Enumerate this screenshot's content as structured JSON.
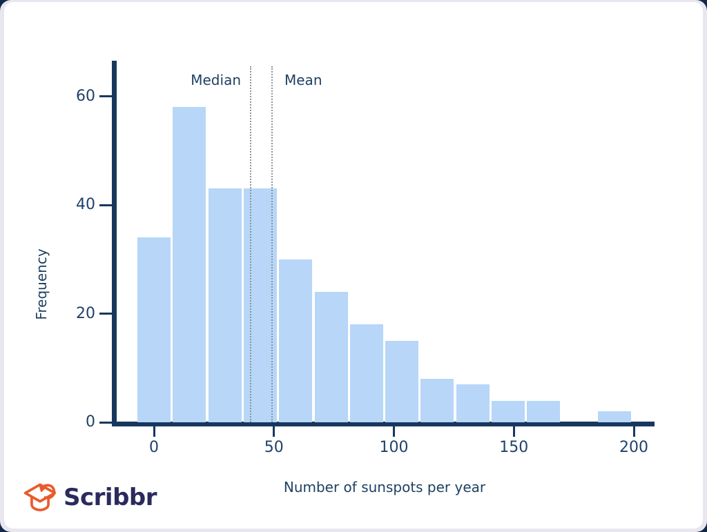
{
  "brand": {
    "name": "Scribbr",
    "logo_orange": "#e85c2b",
    "wordmark_color": "#2a2b5c"
  },
  "page": {
    "card_background": "#ffffff",
    "frame_background": "#e8e6ef"
  },
  "chart_data": {
    "type": "bar",
    "subtype": "histogram",
    "title": "",
    "xlabel": "Number of sunspots per year",
    "ylabel": "Frequency",
    "bin_width": 15,
    "bin_centers": [
      0,
      15,
      30,
      45,
      60,
      75,
      90,
      105,
      120,
      135,
      150,
      165,
      180,
      195
    ],
    "values": [
      34,
      58,
      43,
      43,
      30,
      24,
      18,
      15,
      8,
      7,
      4,
      4,
      0,
      2
    ],
    "x_ticks": [
      0,
      50,
      100,
      150,
      200
    ],
    "y_ticks": [
      0,
      20,
      40,
      60
    ],
    "xlim": [
      -17.5,
      208
    ],
    "ylim": [
      0,
      66
    ],
    "grid": false,
    "legend": "none",
    "annotations": [
      {
        "label": "Median",
        "x": 40,
        "label_side": "left"
      },
      {
        "label": "Mean",
        "x": 49,
        "label_side": "right"
      }
    ],
    "bar_color": "#b7d6f8",
    "axis_color": "#17375e",
    "text_color": "#1f4169",
    "annotation_line_color": "#8d939c"
  }
}
